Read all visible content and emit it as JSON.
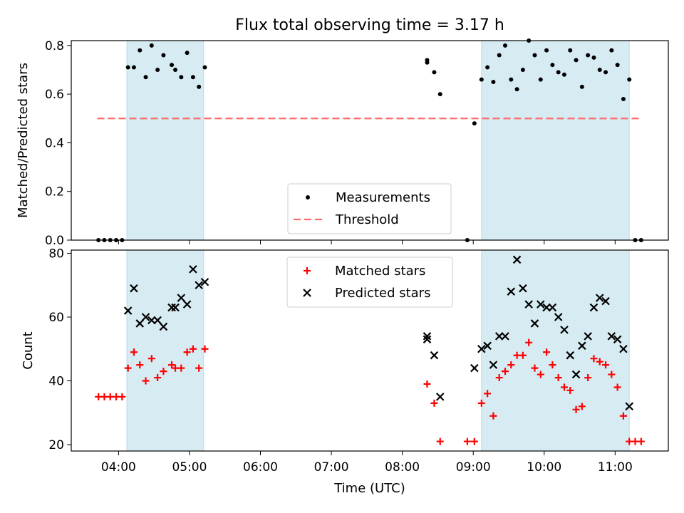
{
  "figure": {
    "title": "Flux total observing time = 3.17 h",
    "xlabel": "Time (UTC)"
  },
  "chart_data": [
    {
      "type": "scatter",
      "id": "ratio",
      "ylabel": "Matched/Predicted stars",
      "xlim": [
        "03:20",
        "11:45"
      ],
      "ylim": [
        0,
        0.82
      ],
      "yticks": [
        0.0,
        0.2,
        0.4,
        0.6,
        0.8
      ],
      "ytick_labels": [
        "0.0",
        "0.2",
        "0.4",
        "0.6",
        "0.8"
      ],
      "xticks": [
        "04:00",
        "05:00",
        "06:00",
        "07:00",
        "08:00",
        "09:00",
        "10:00",
        "11:00"
      ],
      "legend_position": "lower center",
      "shaded_spans": [
        [
          "04:07",
          "05:12"
        ],
        [
          "09:07",
          "11:12"
        ]
      ],
      "shade_color": "#add8e6",
      "threshold": {
        "name": "Threshold",
        "y": 0.5,
        "x_range": [
          "03:42",
          "11:20"
        ],
        "color": "#ff6b6b",
        "style": "dashed"
      },
      "series": [
        {
          "name": "Measurements",
          "marker": "dot",
          "color": "#000000",
          "points": [
            [
              "03:43",
              0.0
            ],
            [
              "03:48",
              0.0
            ],
            [
              "03:53",
              0.0
            ],
            [
              "03:58",
              0.0
            ],
            [
              "04:03",
              0.0
            ],
            [
              "04:08",
              0.71
            ],
            [
              "04:13",
              0.71
            ],
            [
              "04:18",
              0.78
            ],
            [
              "04:23",
              0.67
            ],
            [
              "04:28",
              0.8
            ],
            [
              "04:33",
              0.7
            ],
            [
              "04:38",
              0.76
            ],
            [
              "04:45",
              0.72
            ],
            [
              "04:48",
              0.7
            ],
            [
              "04:53",
              0.67
            ],
            [
              "04:58",
              0.77
            ],
            [
              "05:03",
              0.67
            ],
            [
              "05:08",
              0.63
            ],
            [
              "05:13",
              0.71
            ],
            [
              "08:21",
              0.73
            ],
            [
              "08:21",
              0.74
            ],
            [
              "08:27",
              0.69
            ],
            [
              "08:32",
              0.6
            ],
            [
              "08:55",
              0.0
            ],
            [
              "09:01",
              0.48
            ],
            [
              "09:07",
              0.66
            ],
            [
              "09:12",
              0.71
            ],
            [
              "09:17",
              0.65
            ],
            [
              "09:22",
              0.76
            ],
            [
              "09:27",
              0.8
            ],
            [
              "09:32",
              0.66
            ],
            [
              "09:37",
              0.62
            ],
            [
              "09:42",
              0.7
            ],
            [
              "09:47",
              0.82
            ],
            [
              "09:52",
              0.76
            ],
            [
              "09:57",
              0.66
            ],
            [
              "10:02",
              0.78
            ],
            [
              "10:07",
              0.72
            ],
            [
              "10:12",
              0.69
            ],
            [
              "10:17",
              0.68
            ],
            [
              "10:22",
              0.78
            ],
            [
              "10:27",
              0.74
            ],
            [
              "10:32",
              0.63
            ],
            [
              "10:37",
              0.76
            ],
            [
              "10:42",
              0.75
            ],
            [
              "10:47",
              0.7
            ],
            [
              "10:52",
              0.69
            ],
            [
              "10:57",
              0.78
            ],
            [
              "11:02",
              0.72
            ],
            [
              "11:07",
              0.58
            ],
            [
              "11:12",
              0.66
            ],
            [
              "11:17",
              0.0
            ],
            [
              "11:22",
              0.0
            ]
          ]
        }
      ]
    },
    {
      "type": "scatter",
      "id": "counts",
      "ylabel": "Count",
      "xlim": [
        "03:20",
        "11:45"
      ],
      "ylim": [
        18,
        81
      ],
      "yticks": [
        20,
        40,
        60,
        80
      ],
      "ytick_labels": [
        "20",
        "40",
        "60",
        "80"
      ],
      "xticks": [
        "04:00",
        "05:00",
        "06:00",
        "07:00",
        "08:00",
        "09:00",
        "10:00",
        "11:00"
      ],
      "xtick_labels": [
        "04:00",
        "05:00",
        "06:00",
        "07:00",
        "08:00",
        "09:00",
        "10:00",
        "11:00"
      ],
      "legend_position": "upper center",
      "shaded_spans": [
        [
          "04:07",
          "05:12"
        ],
        [
          "09:07",
          "11:12"
        ]
      ],
      "shade_color": "#add8e6",
      "series": [
        {
          "name": "Matched stars",
          "marker": "plus",
          "color": "#ff0000",
          "points": [
            [
              "03:43",
              35
            ],
            [
              "03:48",
              35
            ],
            [
              "03:53",
              35
            ],
            [
              "03:58",
              35
            ],
            [
              "04:03",
              35
            ],
            [
              "04:08",
              44
            ],
            [
              "04:13",
              49
            ],
            [
              "04:18",
              45
            ],
            [
              "04:23",
              40
            ],
            [
              "04:28",
              47
            ],
            [
              "04:33",
              41
            ],
            [
              "04:38",
              43
            ],
            [
              "04:45",
              45
            ],
            [
              "04:48",
              44
            ],
            [
              "04:53",
              44
            ],
            [
              "04:58",
              49
            ],
            [
              "05:03",
              50
            ],
            [
              "05:08",
              44
            ],
            [
              "05:13",
              50
            ],
            [
              "08:21",
              39
            ],
            [
              "08:27",
              33
            ],
            [
              "08:32",
              21
            ],
            [
              "08:55",
              21
            ],
            [
              "09:01",
              21
            ],
            [
              "09:07",
              33
            ],
            [
              "09:12",
              36
            ],
            [
              "09:17",
              29
            ],
            [
              "09:22",
              41
            ],
            [
              "09:27",
              43
            ],
            [
              "09:32",
              45
            ],
            [
              "09:37",
              48
            ],
            [
              "09:42",
              48
            ],
            [
              "09:47",
              52
            ],
            [
              "09:52",
              44
            ],
            [
              "09:57",
              42
            ],
            [
              "10:02",
              49
            ],
            [
              "10:07",
              45
            ],
            [
              "10:12",
              41
            ],
            [
              "10:17",
              38
            ],
            [
              "10:22",
              37
            ],
            [
              "10:27",
              31
            ],
            [
              "10:32",
              32
            ],
            [
              "10:37",
              41
            ],
            [
              "10:42",
              47
            ],
            [
              "10:47",
              46
            ],
            [
              "10:52",
              45
            ],
            [
              "10:57",
              42
            ],
            [
              "11:02",
              38
            ],
            [
              "11:07",
              29
            ],
            [
              "11:12",
              21
            ],
            [
              "11:17",
              21
            ],
            [
              "11:22",
              21
            ]
          ]
        },
        {
          "name": "Predicted stars",
          "marker": "x",
          "color": "#000000",
          "points": [
            [
              "04:08",
              62
            ],
            [
              "04:13",
              69
            ],
            [
              "04:18",
              58
            ],
            [
              "04:23",
              60
            ],
            [
              "04:28",
              59
            ],
            [
              "04:33",
              59
            ],
            [
              "04:38",
              57
            ],
            [
              "04:45",
              63
            ],
            [
              "04:48",
              63
            ],
            [
              "04:53",
              66
            ],
            [
              "04:58",
              64
            ],
            [
              "05:03",
              75
            ],
            [
              "05:08",
              70
            ],
            [
              "05:13",
              71
            ],
            [
              "08:21",
              54
            ],
            [
              "08:21",
              53
            ],
            [
              "08:27",
              48
            ],
            [
              "08:32",
              35
            ],
            [
              "09:01",
              44
            ],
            [
              "09:07",
              50
            ],
            [
              "09:12",
              51
            ],
            [
              "09:17",
              45
            ],
            [
              "09:22",
              54
            ],
            [
              "09:27",
              54
            ],
            [
              "09:32",
              68
            ],
            [
              "09:37",
              78
            ],
            [
              "09:42",
              69
            ],
            [
              "09:47",
              64
            ],
            [
              "09:52",
              58
            ],
            [
              "09:57",
              64
            ],
            [
              "10:02",
              63
            ],
            [
              "10:07",
              63
            ],
            [
              "10:12",
              60
            ],
            [
              "10:17",
              56
            ],
            [
              "10:22",
              48
            ],
            [
              "10:27",
              42
            ],
            [
              "10:32",
              51
            ],
            [
              "10:37",
              54
            ],
            [
              "10:42",
              63
            ],
            [
              "10:47",
              66
            ],
            [
              "10:52",
              65
            ],
            [
              "10:57",
              54
            ],
            [
              "11:02",
              53
            ],
            [
              "11:07",
              50
            ],
            [
              "11:12",
              32
            ]
          ]
        }
      ]
    }
  ]
}
